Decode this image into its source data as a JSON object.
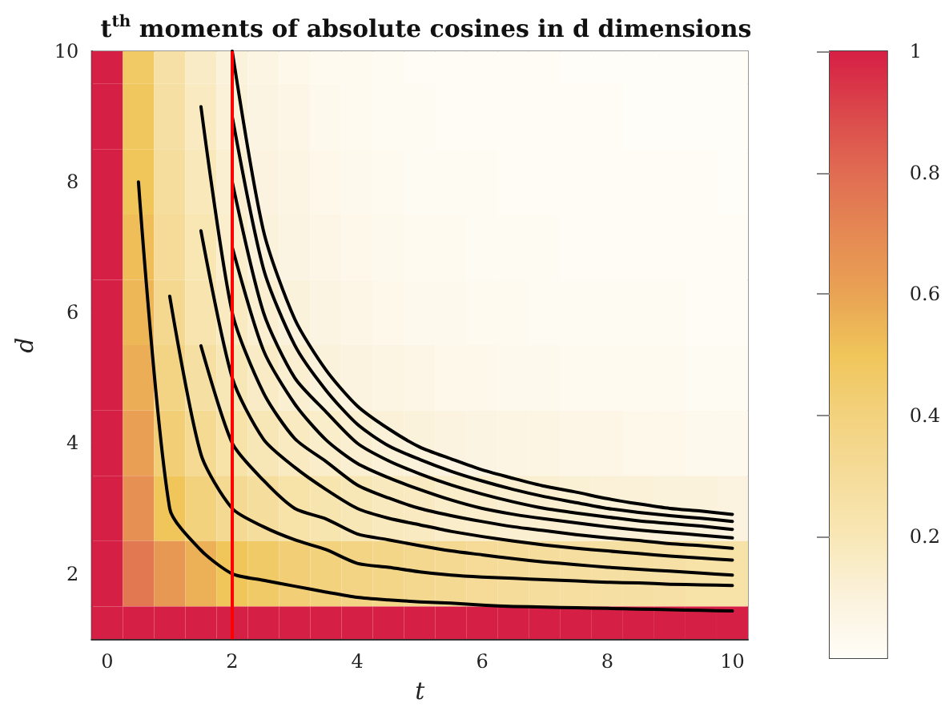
{
  "chart_data": {
    "type": "heatmap",
    "title": "t$^{th}$ moments of absolute cosines in d dimensions",
    "xlabel": "t",
    "ylabel": "d",
    "categories": [
      "0",
      null,
      null,
      null,
      "2",
      null,
      null,
      null,
      "4",
      null,
      null,
      null,
      "6",
      null,
      null,
      null,
      "8",
      null,
      null,
      null,
      "10"
    ],
    "cells": [
      [
        1,
        0.47,
        0.26,
        0.16,
        0.1,
        0.07,
        0.05,
        0.03,
        0.03,
        0.02,
        0.01,
        0.01,
        0.01,
        0.01,
        0.01,
        0,
        0,
        0,
        0,
        0,
        0
      ],
      [
        1,
        0.49,
        0.27,
        0.17,
        0.11,
        0.08,
        0.06,
        0.04,
        0.03,
        0.02,
        0.02,
        0.01,
        0.01,
        0.01,
        0.01,
        0.01,
        0.01,
        0,
        0,
        0,
        0
      ],
      [
        1,
        0.5,
        0.29,
        0.19,
        0.13,
        0.09,
        0.07,
        0.05,
        0.04,
        0.03,
        0.02,
        0.02,
        0.02,
        0.01,
        0.01,
        0.01,
        0.01,
        0.01,
        0.01,
        0.01,
        0
      ],
      [
        1,
        0.52,
        0.31,
        0.21,
        0.14,
        0.1,
        0.08,
        0.06,
        0.05,
        0.04,
        0.03,
        0.03,
        0.02,
        0.02,
        0.02,
        0.01,
        0.01,
        0.01,
        0.01,
        0.01,
        0.01
      ],
      [
        1,
        0.54,
        0.34,
        0.23,
        0.17,
        0.13,
        0.1,
        0.08,
        0.06,
        0.05,
        0.04,
        0.04,
        0.03,
        0.03,
        0.02,
        0.02,
        0.02,
        0.02,
        0.02,
        0.01,
        0.01
      ],
      [
        1,
        0.57,
        0.38,
        0.27,
        0.2,
        0.16,
        0.13,
        0.1,
        0.09,
        0.07,
        0.06,
        0.05,
        0.05,
        0.04,
        0.04,
        0.03,
        0.03,
        0.03,
        0.03,
        0.02,
        0.02
      ],
      [
        1,
        0.61,
        0.42,
        0.32,
        0.25,
        0.2,
        0.17,
        0.15,
        0.13,
        0.11,
        0.1,
        0.09,
        0.08,
        0.07,
        0.07,
        0.06,
        0.06,
        0.05,
        0.05,
        0.04,
        0.04
      ],
      [
        1,
        0.67,
        0.5,
        0.4,
        0.33,
        0.29,
        0.25,
        0.22,
        0.2,
        0.18,
        0.17,
        0.15,
        0.14,
        0.13,
        0.13,
        0.12,
        0.11,
        0.11,
        0.1,
        0.1,
        0.09
      ],
      [
        1,
        0.76,
        0.64,
        0.56,
        0.5,
        0.46,
        0.42,
        0.4,
        0.38,
        0.36,
        0.34,
        0.33,
        0.31,
        0.3,
        0.29,
        0.28,
        0.27,
        0.27,
        0.26,
        0.25,
        0.25
      ],
      [
        1,
        1,
        1,
        1,
        1,
        1,
        1,
        1,
        1,
        1,
        1,
        1,
        1,
        1,
        1,
        1,
        1,
        1,
        1,
        1,
        1
      ]
    ],
    "clim": [
      0,
      1
    ],
    "cticks": [
      0.2,
      0.4,
      0.6,
      0.8,
      1
    ],
    "ylim": [
      1,
      10
    ],
    "yticks": [
      2,
      4,
      6,
      8,
      10
    ],
    "series": [
      {
        "type": "line",
        "color": "#000000",
        "values": [
          null,
          8,
          3,
          2.36,
          2,
          1.9,
          1.81,
          1.72,
          1.64,
          1.6,
          1.57,
          1.55,
          1.52,
          1.5,
          1.49,
          1.48,
          1.47,
          1.46,
          1.45,
          1.44,
          1.43
        ]
      },
      {
        "type": "line",
        "color": "#000000",
        "values": [
          null,
          null,
          6.25,
          3.83,
          3,
          2.72,
          2.52,
          2.37,
          2.16,
          2.1,
          2.03,
          1.98,
          1.95,
          1.93,
          1.91,
          1.89,
          1.87,
          1.86,
          1.84,
          1.83,
          1.82
        ]
      },
      {
        "type": "line",
        "color": "#000000",
        "values": [
          null,
          null,
          null,
          5.49,
          4,
          3.43,
          3,
          2.84,
          2.61,
          2.52,
          2.43,
          2.35,
          2.29,
          2.23,
          2.18,
          2.14,
          2.1,
          2.07,
          2.04,
          2.01,
          1.98
        ]
      },
      {
        "type": "line",
        "color": "#000000",
        "values": [
          null,
          null,
          null,
          7.25,
          5,
          4.06,
          3.63,
          3.29,
          3,
          2.85,
          2.75,
          2.65,
          2.57,
          2.5,
          2.44,
          2.39,
          2.35,
          2.31,
          2.27,
          2.24,
          2.21
        ]
      },
      {
        "type": "line",
        "color": "#000000",
        "values": [
          null,
          null,
          null,
          9.15,
          6,
          4.77,
          4.07,
          3.72,
          3.36,
          3.16,
          3,
          2.89,
          2.8,
          2.72,
          2.66,
          2.6,
          2.55,
          2.51,
          2.46,
          2.43,
          2.39
        ]
      },
      {
        "type": "line",
        "color": "#000000",
        "values": [
          null,
          null,
          null,
          null,
          7,
          5.42,
          4.6,
          4.05,
          3.69,
          3.47,
          3.29,
          3.13,
          3,
          2.91,
          2.84,
          2.78,
          2.72,
          2.67,
          2.63,
          2.59,
          2.55
        ]
      },
      {
        "type": "line",
        "color": "#000000",
        "values": [
          null,
          null,
          null,
          null,
          8,
          6,
          5,
          4.48,
          4,
          3.73,
          3.53,
          3.36,
          3.22,
          3.1,
          3,
          2.93,
          2.87,
          2.81,
          2.77,
          2.73,
          2.68
        ]
      },
      {
        "type": "line",
        "color": "#000000",
        "values": [
          null,
          null,
          null,
          null,
          9,
          6.67,
          5.5,
          4.81,
          4.29,
          3.96,
          3.75,
          3.57,
          3.42,
          3.29,
          3.18,
          3.09,
          3,
          2.94,
          2.89,
          2.85,
          2.8
        ]
      },
      {
        "type": "line",
        "color": "#000000",
        "values": [
          null,
          null,
          null,
          null,
          10,
          7.25,
          5.9,
          5.12,
          4.57,
          4.22,
          3.94,
          3.76,
          3.59,
          3.46,
          3.34,
          3.25,
          3.15,
          3.07,
          3,
          2.96,
          2.91
        ]
      }
    ],
    "ref_lines": [
      {
        "axis": "x",
        "value": "2",
        "color": "#ff0000"
      }
    ]
  }
}
